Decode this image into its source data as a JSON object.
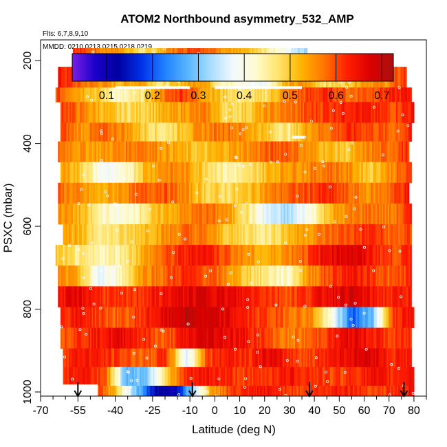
{
  "chart_data": {
    "type": "heatmap",
    "title": "ATOM2 Northbound asymmetry_532_AMP",
    "subtitle_flights": "Flts: 6,7,8,9,10",
    "subtitle_dates": "MMDD: 0210,0213,0215,0218,0219",
    "xlabel": "Latitude (deg N)",
    "ylabel": "PSXC (mbar)",
    "xlim": [
      -70,
      85
    ],
    "ylim": [
      1010,
      150
    ],
    "x_ticks": [
      -70,
      -55,
      -40,
      -25,
      -10,
      0,
      10,
      20,
      30,
      40,
      50,
      60,
      70,
      80
    ],
    "x_minor_step": 5,
    "y_ticks": [
      200,
      400,
      600,
      800,
      1000
    ],
    "colorbar": {
      "range": [
        0.025,
        0.725
      ],
      "ticks": [
        0.1,
        0.2,
        0.3,
        0.4,
        0.5,
        0.6,
        0.7
      ],
      "colors": [
        "#7a1fe6",
        "#1a00c8",
        "#0000a0",
        "#0030e6",
        "#1f7fff",
        "#55b4ff",
        "#a6dcff",
        "#f2f9ff",
        "#fffbd0",
        "#ffe36a",
        "#ffb300",
        "#ff7300",
        "#ff1e00",
        "#dc0000",
        "#a81010"
      ]
    },
    "z_layers": [
      {
        "p_top": 170,
        "p_bot": 215,
        "lat_start": -57,
        "lat_end": 37,
        "values": [
          0.62,
          0.6,
          0.55,
          0.56,
          0.52,
          0.46,
          0.5,
          0.56,
          0.59,
          0.62,
          0.58,
          0.55,
          0.52,
          0.5,
          0.46,
          0.42,
          0.36,
          0.32
        ]
      },
      {
        "p_top": 215,
        "p_bot": 265,
        "lat_start": -63,
        "lat_end": 77,
        "values": [
          0.64,
          0.58,
          0.56,
          0.52,
          0.55,
          0.46,
          0.52,
          0.56,
          0.44,
          0.4,
          0.38,
          0.52,
          0.55,
          0.48,
          0.5,
          0.56,
          0.55,
          0.62
        ]
      },
      {
        "p_top": 265,
        "p_bot": 300,
        "lat_start": -64,
        "lat_end": 79,
        "values": [
          0.6,
          0.55,
          0.5,
          0.42,
          0.46,
          0.56,
          0.62,
          0.55,
          0.5,
          0.46,
          0.48,
          0.56,
          0.6,
          0.62,
          0.58,
          0.6,
          0.62,
          0.64
        ]
      },
      {
        "p_top": 300,
        "p_bot": 350,
        "lat_start": -62,
        "lat_end": 80,
        "values": [
          0.62,
          0.56,
          0.52,
          0.48,
          0.5,
          0.52,
          0.55,
          0.56,
          0.48,
          0.5,
          0.55,
          0.57,
          0.6,
          0.62,
          0.64,
          0.62,
          0.6,
          0.64
        ]
      },
      {
        "p_top": 350,
        "p_bot": 395,
        "lat_start": -62,
        "lat_end": 79,
        "values": [
          0.6,
          0.55,
          0.58,
          0.56,
          0.5,
          0.46,
          0.52,
          0.56,
          0.58,
          0.55,
          0.5,
          0.46,
          0.55,
          0.58,
          0.62,
          0.6,
          0.58,
          0.62
        ]
      },
      {
        "p_top": 395,
        "p_bot": 445,
        "lat_start": -63,
        "lat_end": 78,
        "values": [
          0.58,
          0.55,
          0.54,
          0.56,
          0.58,
          0.55,
          0.52,
          0.5,
          0.53,
          0.55,
          0.58,
          0.6,
          0.55,
          0.52,
          0.5,
          0.56,
          0.58,
          0.62
        ]
      },
      {
        "p_top": 445,
        "p_bot": 495,
        "lat_start": -62,
        "lat_end": 79,
        "values": [
          0.55,
          0.5,
          0.38,
          0.4,
          0.52,
          0.56,
          0.55,
          0.5,
          0.44,
          0.46,
          0.52,
          0.55,
          0.56,
          0.58,
          0.55,
          0.5,
          0.56,
          0.6
        ]
      },
      {
        "p_top": 495,
        "p_bot": 545,
        "lat_start": -63,
        "lat_end": 78,
        "values": [
          0.58,
          0.55,
          0.52,
          0.55,
          0.58,
          0.6,
          0.56,
          0.5,
          0.48,
          0.5,
          0.55,
          0.58,
          0.6,
          0.62,
          0.58,
          0.55,
          0.58,
          0.64
        ]
      },
      {
        "p_top": 545,
        "p_bot": 595,
        "lat_start": -63,
        "lat_end": 79,
        "values": [
          0.56,
          0.52,
          0.44,
          0.4,
          0.46,
          0.52,
          0.55,
          0.58,
          0.55,
          0.48,
          0.36,
          0.32,
          0.4,
          0.52,
          0.56,
          0.58,
          0.56,
          0.62
        ]
      },
      {
        "p_top": 595,
        "p_bot": 645,
        "lat_start": -61,
        "lat_end": 79,
        "values": [
          0.55,
          0.5,
          0.46,
          0.48,
          0.52,
          0.55,
          0.58,
          0.56,
          0.5,
          0.48,
          0.46,
          0.52,
          0.55,
          0.58,
          0.6,
          0.62,
          0.58,
          0.6
        ]
      },
      {
        "p_top": 645,
        "p_bot": 695,
        "lat_start": -64,
        "lat_end": 79,
        "values": [
          0.5,
          0.46,
          0.44,
          0.45,
          0.52,
          0.58,
          0.62,
          0.65,
          0.6,
          0.55,
          0.52,
          0.56,
          0.6,
          0.66,
          0.68,
          0.64,
          0.6,
          0.62
        ]
      },
      {
        "p_top": 695,
        "p_bot": 745,
        "lat_start": -63,
        "lat_end": 79,
        "values": [
          0.56,
          0.52,
          0.36,
          0.44,
          0.55,
          0.58,
          0.62,
          0.6,
          0.56,
          0.5,
          0.46,
          0.42,
          0.55,
          0.6,
          0.64,
          0.62,
          0.58,
          0.62
        ]
      },
      {
        "p_top": 745,
        "p_bot": 795,
        "lat_start": -63,
        "lat_end": 79,
        "values": [
          0.64,
          0.66,
          0.62,
          0.6,
          0.62,
          0.64,
          0.66,
          0.68,
          0.66,
          0.64,
          0.62,
          0.6,
          0.62,
          0.66,
          0.68,
          0.64,
          0.62,
          0.64
        ]
      },
      {
        "p_top": 795,
        "p_bot": 845,
        "lat_start": -62,
        "lat_end": 80,
        "values": [
          0.62,
          0.64,
          0.6,
          0.58,
          0.62,
          0.66,
          0.7,
          0.68,
          0.66,
          0.62,
          0.6,
          0.58,
          0.56,
          0.4,
          0.2,
          0.3,
          0.62,
          0.64
        ]
      },
      {
        "p_top": 845,
        "p_bot": 895,
        "lat_start": -62,
        "lat_end": 79,
        "values": [
          0.6,
          0.62,
          0.64,
          0.66,
          0.62,
          0.58,
          0.64,
          0.68,
          0.66,
          0.64,
          0.6,
          0.56,
          0.58,
          0.62,
          0.66,
          0.64,
          0.6,
          0.62
        ]
      },
      {
        "p_top": 895,
        "p_bot": 940,
        "lat_start": -61,
        "lat_end": 79,
        "values": [
          0.62,
          0.64,
          0.62,
          0.6,
          0.58,
          0.62,
          0.36,
          0.6,
          0.64,
          0.62,
          0.66,
          0.62,
          0.6,
          0.64,
          0.66,
          0.68,
          0.62,
          0.64
        ]
      },
      {
        "p_top": 940,
        "p_bot": 985,
        "lat_start": -61,
        "lat_end": 80,
        "values": [
          0.62,
          0.64,
          0.6,
          0.28,
          0.3,
          0.5,
          0.62,
          0.64,
          0.62,
          0.6,
          0.62,
          0.64,
          0.62,
          0.6,
          0.62,
          0.64,
          0.62,
          0.66
        ]
      },
      {
        "p_top": 985,
        "p_bot": 1010,
        "lat_start": -47,
        "lat_end": 80,
        "values": [
          0.6,
          0.5,
          0.3,
          0.14,
          0.1,
          0.3,
          0.52,
          0.6,
          0.62,
          0.64,
          0.62,
          0.6,
          0.62,
          0.64,
          0.62,
          0.6,
          0.62,
          0.64
        ]
      }
    ],
    "arrows_lat": [
      -55,
      -9,
      38,
      76
    ],
    "white_gaps": [
      {
        "p": 265,
        "lat_start": -40,
        "lat_end": -10
      },
      {
        "p": 265,
        "lat_start": 0,
        "lat_end": 35
      },
      {
        "p": 385,
        "lat_start": 31,
        "lat_end": 36
      },
      {
        "p": 985,
        "lat_start": -63,
        "lat_end": -47
      }
    ],
    "markers_per_row": 12
  }
}
